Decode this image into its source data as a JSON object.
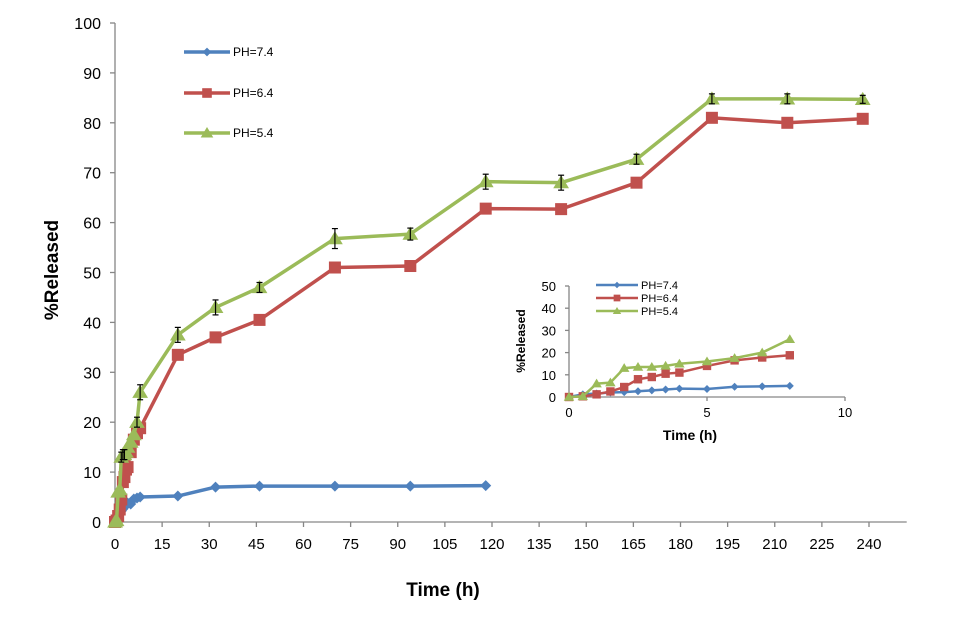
{
  "chart_data": [
    {
      "id": "main",
      "type": "line",
      "title": "",
      "xlabel": "Time (h)",
      "ylabel": "%Released",
      "xlim": [
        0,
        252
      ],
      "ylim": [
        0,
        100
      ],
      "xticks": [
        0,
        15,
        30,
        45,
        60,
        75,
        90,
        105,
        120,
        135,
        150,
        165,
        180,
        195,
        210,
        225,
        240
      ],
      "yticks": [
        0,
        10,
        20,
        30,
        40,
        50,
        60,
        70,
        80,
        90,
        100
      ],
      "grid": false,
      "legend": "top-left",
      "series": [
        {
          "name": "PH=7.4",
          "color": "#4F81BD",
          "marker": "diamond",
          "x": [
            0,
            0.5,
            1,
            1.5,
            2,
            2.5,
            3,
            3.5,
            4,
            5,
            6,
            7,
            8,
            20,
            32,
            46,
            70,
            94,
            118
          ],
          "y": [
            0,
            1.2,
            1.6,
            2.0,
            2.2,
            2.6,
            3.0,
            3.4,
            3.8,
            3.6,
            4.6,
            4.8,
            5.0,
            5.2,
            7.0,
            7.2,
            7.2,
            7.2,
            7.3
          ]
        },
        {
          "name": "PH=6.4",
          "color": "#C0504D",
          "marker": "square",
          "x": [
            0,
            0.5,
            1,
            1.5,
            2,
            2.5,
            3,
            3.5,
            4,
            5,
            6,
            7,
            8,
            20,
            32,
            46,
            70,
            94,
            118,
            142,
            166,
            190,
            214,
            238
          ],
          "y": [
            0,
            0.3,
            1.2,
            2.5,
            4.5,
            8.0,
            9.0,
            10.5,
            11.0,
            14.0,
            16.5,
            17.8,
            18.8,
            33.5,
            37.0,
            40.5,
            51.0,
            51.3,
            62.8,
            62.7,
            68.0,
            81.0,
            80.0,
            80.8
          ]
        },
        {
          "name": "PH=5.4",
          "color": "#9BBB59",
          "marker": "triangle",
          "x": [
            0,
            0.5,
            1,
            1.5,
            2,
            2.5,
            3,
            3.5,
            4,
            5,
            6,
            7,
            8,
            20,
            32,
            46,
            70,
            94,
            118,
            142,
            166,
            190,
            214,
            238
          ],
          "y": [
            0,
            0.3,
            6.0,
            6.5,
            13.0,
            13.5,
            13.5,
            14.0,
            15.0,
            16.0,
            17.5,
            20.0,
            26.0,
            37.5,
            43.0,
            47.0,
            56.8,
            57.7,
            68.2,
            68.0,
            72.7,
            84.8,
            84.8,
            84.7
          ],
          "yerr": [
            0,
            0,
            0,
            0,
            1.0,
            1.0,
            1.0,
            0,
            0,
            0,
            0,
            1.0,
            1.5,
            1.5,
            1.5,
            1.0,
            2.0,
            1.2,
            1.5,
            1.5,
            1.0,
            1.0,
            1.0,
            0.8
          ]
        }
      ]
    },
    {
      "id": "inset",
      "type": "line",
      "title": "",
      "xlabel": "Time (h)",
      "ylabel": "%Released",
      "xlim": [
        0,
        10
      ],
      "ylim": [
        0,
        50
      ],
      "xticks": [
        0,
        5,
        10
      ],
      "yticks": [
        0,
        10,
        20,
        30,
        40,
        50
      ],
      "grid": false,
      "legend": "top-left",
      "series": [
        {
          "name": "PH=7.4",
          "color": "#4F81BD",
          "marker": "diamond",
          "x": [
            0,
            0.5,
            1,
            1.5,
            2,
            2.5,
            3,
            3.5,
            4,
            5,
            6,
            7,
            8
          ],
          "y": [
            0,
            1.2,
            1.6,
            2.0,
            2.2,
            2.6,
            3.0,
            3.4,
            3.8,
            3.6,
            4.6,
            4.8,
            5.0
          ]
        },
        {
          "name": "PH=6.4",
          "color": "#C0504D",
          "marker": "square",
          "x": [
            0,
            0.5,
            1,
            1.5,
            2,
            2.5,
            3,
            3.5,
            4,
            5,
            6,
            7,
            8
          ],
          "y": [
            0,
            0.3,
            1.2,
            2.5,
            4.5,
            8.0,
            9.0,
            10.5,
            11.0,
            14.0,
            16.5,
            17.8,
            18.8
          ]
        },
        {
          "name": "PH=5.4",
          "color": "#9BBB59",
          "marker": "triangle",
          "x": [
            0,
            0.5,
            1,
            1.5,
            2,
            2.5,
            3,
            3.5,
            4,
            5,
            6,
            7,
            8
          ],
          "y": [
            0,
            0.3,
            6.0,
            6.5,
            13.0,
            13.5,
            13.5,
            14.0,
            15.0,
            16.0,
            17.5,
            20.0,
            26.0
          ]
        }
      ]
    }
  ]
}
